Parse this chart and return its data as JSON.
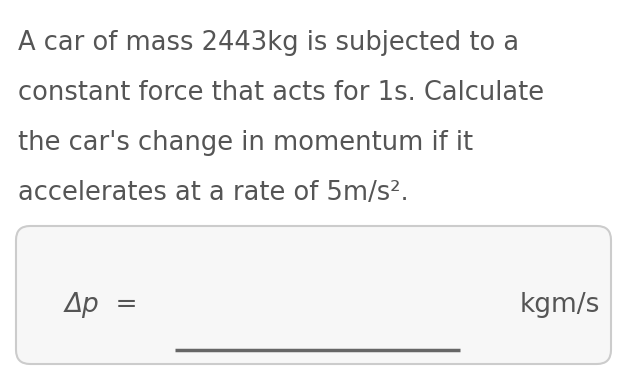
{
  "background_color": "#ffffff",
  "text_color": "#555555",
  "question_lines": [
    "A car of mass 2443kg is subjected to a",
    "constant force that acts for 1s. Calculate",
    "the car's change in momentum if it",
    "accelerates at a rate of 5m/s²."
  ],
  "answer_box": {
    "left_label": "Δp  =",
    "right_label": "kgm/s",
    "box_color": "#f7f7f7",
    "box_edge_color": "#cccccc",
    "line_color": "#666666"
  },
  "question_fontsize": 18.5,
  "answer_fontsize": 19,
  "fig_width": 6.21,
  "fig_height": 3.66,
  "dpi": 100
}
